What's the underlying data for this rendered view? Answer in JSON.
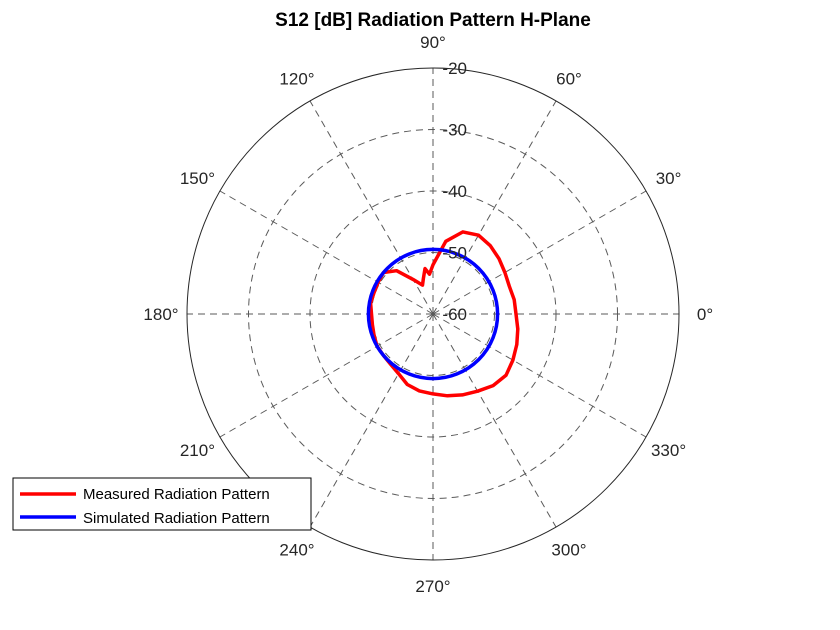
{
  "chart_data": {
    "type": "polar-line",
    "title": "S12 [dB] Radiation Pattern H-Plane",
    "theta_ticks": [
      0,
      30,
      60,
      90,
      120,
      150,
      180,
      210,
      240,
      270,
      300,
      330
    ],
    "theta_tick_labels": [
      "0°",
      "30°",
      "60°",
      "90°",
      "120°",
      "150°",
      "180°",
      "210°",
      "240°",
      "270°",
      "300°",
      "330°"
    ],
    "r_lim": [
      -60,
      -20
    ],
    "r_ticks": [
      -60,
      -50,
      -40,
      -30,
      -20
    ],
    "r_tick_labels": [
      "-60",
      "-50",
      "-40",
      "-30",
      "-20"
    ],
    "grid": true,
    "legend_location": "bottom-left",
    "series": [
      {
        "name": "Measured Radiation Pattern",
        "color": "#ff0000",
        "theta_deg": [
          0,
          10,
          20,
          30,
          40,
          50,
          60,
          70,
          80,
          90,
          95,
          100,
          105,
          110,
          120,
          130,
          140,
          150,
          160,
          170,
          180,
          190,
          200,
          210,
          220,
          230,
          240,
          250,
          260,
          270,
          280,
          290,
          300,
          310,
          320,
          330,
          340,
          350,
          360
        ],
        "r_db": [
          -46.5,
          -46.6,
          -46.8,
          -46.5,
          -46.0,
          -45.5,
          -45.2,
          -45.8,
          -48.0,
          -52.0,
          -53.5,
          -52.5,
          -54.0,
          -55.0,
          -53.5,
          -50.8,
          -49.5,
          -49.7,
          -49.8,
          -49.7,
          -50.0,
          -50.0,
          -49.8,
          -49.5,
          -49.5,
          -49.3,
          -48.8,
          -47.8,
          -47.3,
          -47.0,
          -46.5,
          -46.0,
          -45.5,
          -44.8,
          -44.5,
          -45.0,
          -45.5,
          -46.0,
          -46.5
        ]
      },
      {
        "name": "Simulated Radiation Pattern",
        "color": "#0000ff",
        "theta_deg": [
          0,
          30,
          60,
          90,
          120,
          150,
          180,
          210,
          240,
          270,
          300,
          330,
          360
        ],
        "r_db": [
          -49.5,
          -49.5,
          -49.5,
          -49.5,
          -49.5,
          -49.5,
          -49.5,
          -49.5,
          -49.5,
          -49.5,
          -49.5,
          -49.5,
          -49.5
        ]
      }
    ]
  }
}
